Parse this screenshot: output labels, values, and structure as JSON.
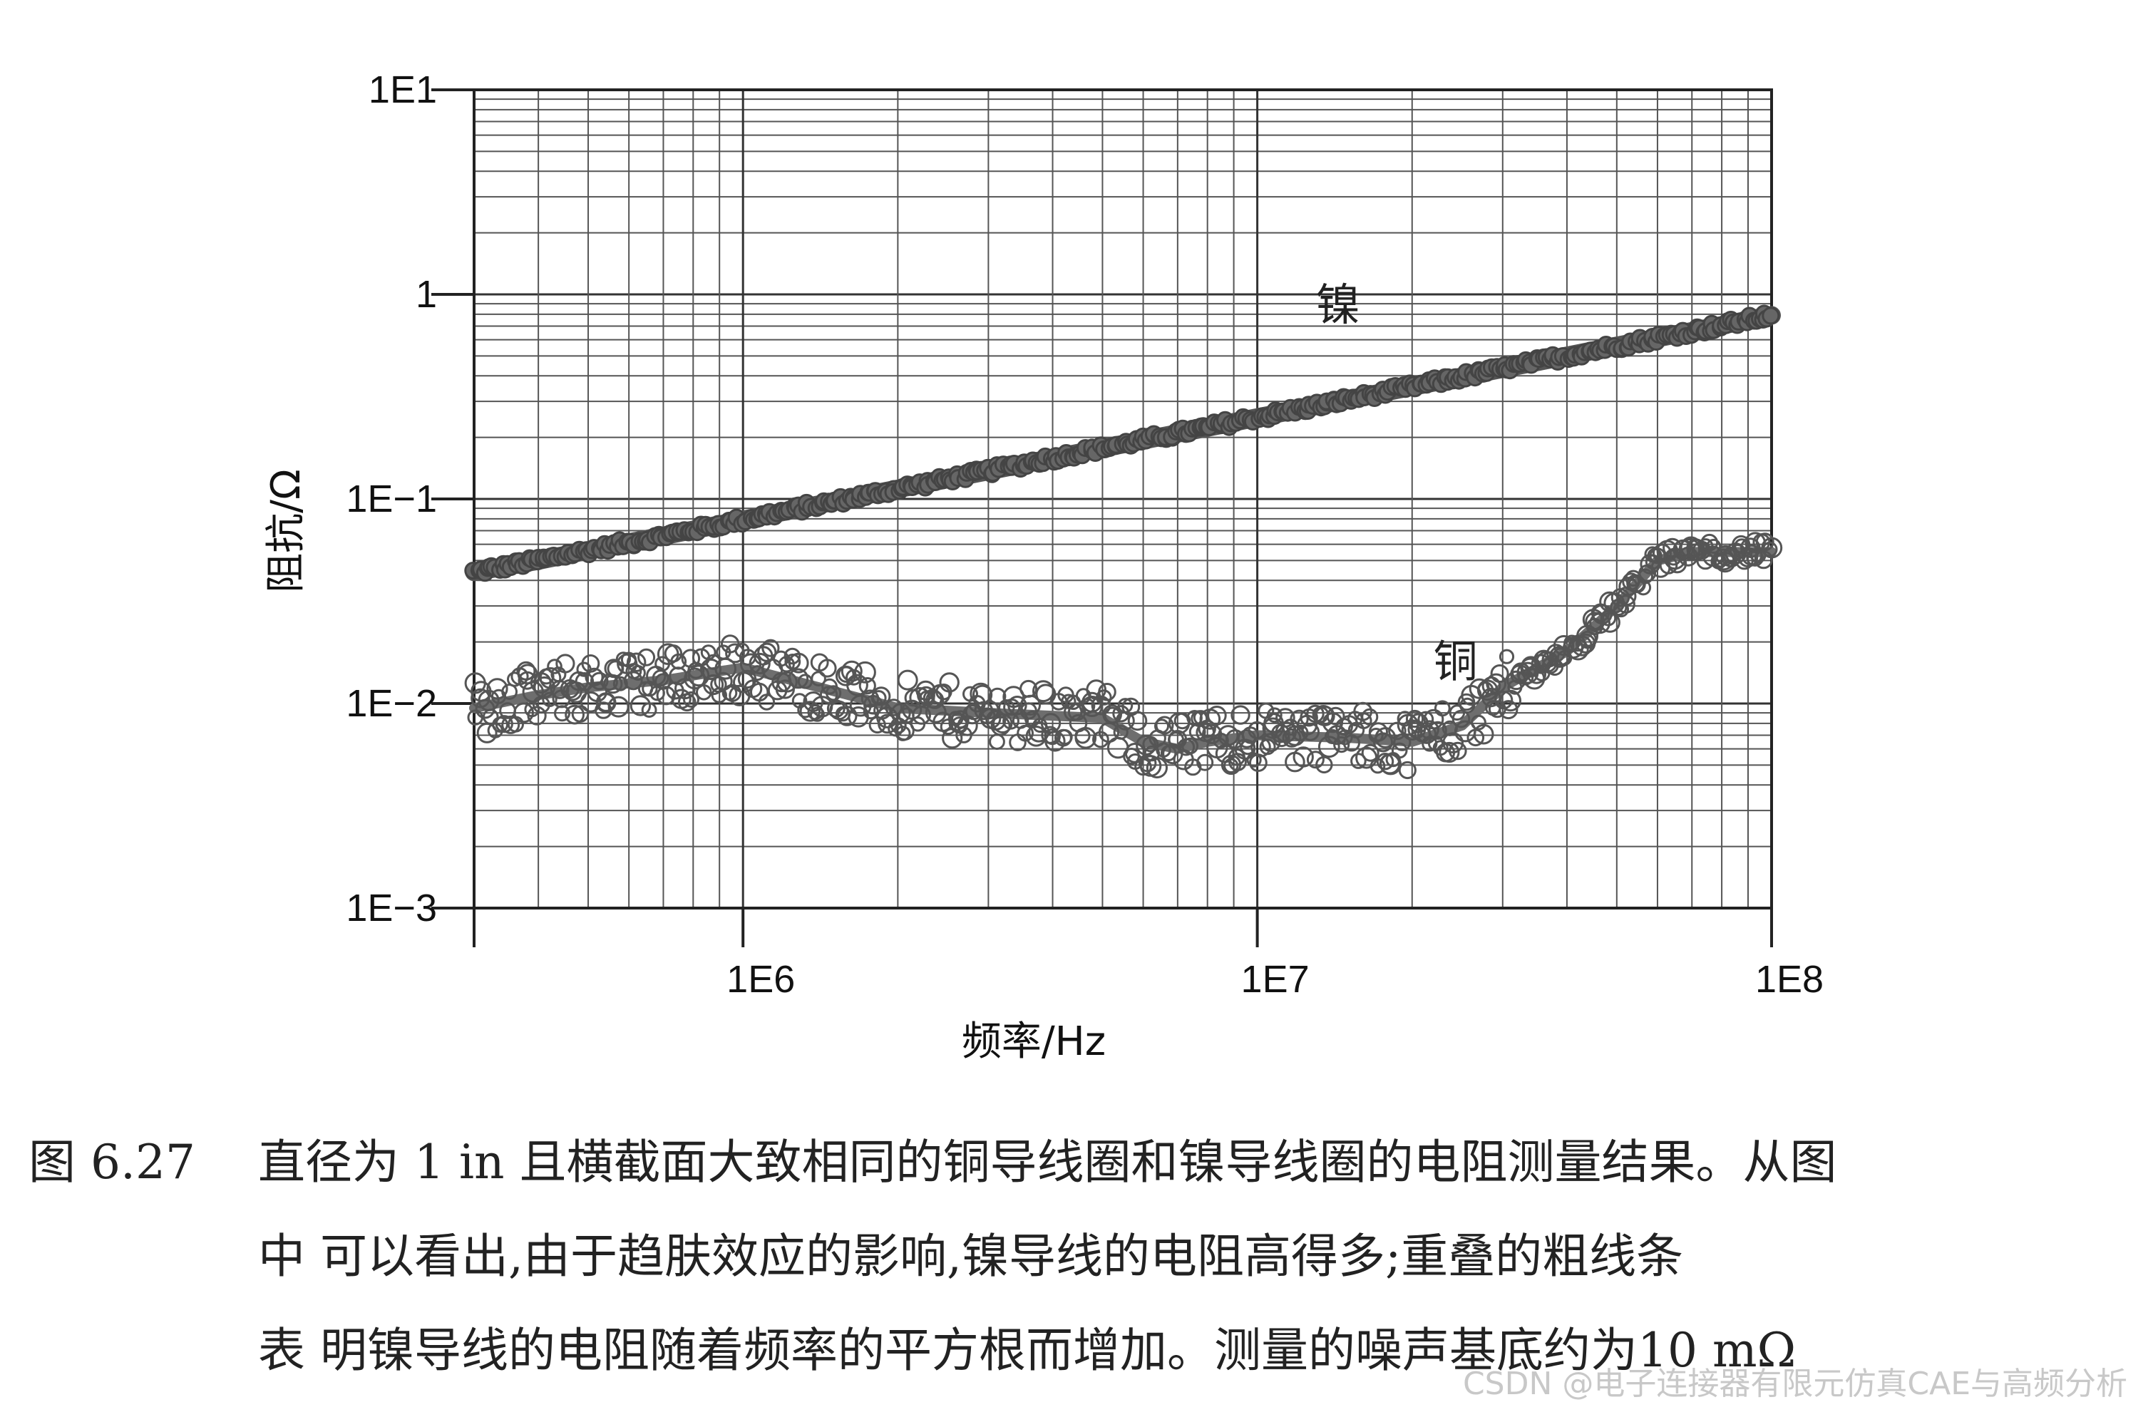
{
  "chart_data": {
    "type": "scatter",
    "xscale": "log",
    "yscale": "log",
    "xlim": [
      300000,
      100000000
    ],
    "ylim": [
      0.001,
      10
    ],
    "xticks": [
      {
        "value": 1000000,
        "label": "1E6"
      },
      {
        "value": 10000000,
        "label": "1E7"
      },
      {
        "value": 100000000,
        "label": "1E8"
      }
    ],
    "yticks": [
      {
        "value": 10,
        "label": "1E1"
      },
      {
        "value": 1,
        "label": "1"
      },
      {
        "value": 0.1,
        "label": "1E−1"
      },
      {
        "value": 0.01,
        "label": "1E−2"
      },
      {
        "value": 0.001,
        "label": "1E−3"
      }
    ],
    "xlabel": "频率/Hz",
    "ylabel": "阻抗/Ω",
    "grid": true,
    "series": [
      {
        "name": "镍",
        "color": "#555555",
        "x": [
          300000,
          400000,
          500000,
          700000,
          1000000,
          1500000,
          2000000,
          3000000,
          5000000,
          7000000,
          10000000,
          15000000,
          20000000,
          30000000,
          50000000,
          70000000,
          100000000
        ],
        "y": [
          0.044,
          0.05,
          0.056,
          0.066,
          0.079,
          0.097,
          0.112,
          0.137,
          0.177,
          0.209,
          0.25,
          0.306,
          0.354,
          0.433,
          0.56,
          0.66,
          0.79
        ]
      },
      {
        "name": "铜",
        "color": "#6e6e6e",
        "x": [
          300000,
          400000,
          500000,
          700000,
          1000000,
          1500000,
          2000000,
          3000000,
          5000000,
          6000000,
          7000000,
          8000000,
          10000000,
          15000000,
          20000000,
          25000000,
          30000000,
          40000000,
          50000000,
          60000000,
          70000000,
          100000000
        ],
        "y": [
          0.0095,
          0.011,
          0.012,
          0.013,
          0.015,
          0.0115,
          0.0095,
          0.009,
          0.0085,
          0.0065,
          0.006,
          0.0065,
          0.007,
          0.0068,
          0.0065,
          0.0078,
          0.012,
          0.018,
          0.03,
          0.05,
          0.055,
          0.055
        ]
      }
    ],
    "annotations": [
      {
        "text": "镍",
        "x": 13000000,
        "y": 0.75
      },
      {
        "text": "铜",
        "x": 22000000,
        "y": 0.0135
      }
    ]
  },
  "caption": {
    "figure_number": "图 6.27",
    "lines": [
      "直径为 1 in 且横截面大致相同的铜导线圈和镍导线圈的电阻测量结果。从图",
      "中 可以看出,由于趋肤效应的影响,镍导线的电阻高得多;重叠的粗线条",
      "表 明镍导线的电阻随着频率的平方根而增加。测量的噪声基底约为10 mΩ"
    ]
  },
  "watermark": "CSDN @电子连接器有限元仿真CAE与高频分析"
}
